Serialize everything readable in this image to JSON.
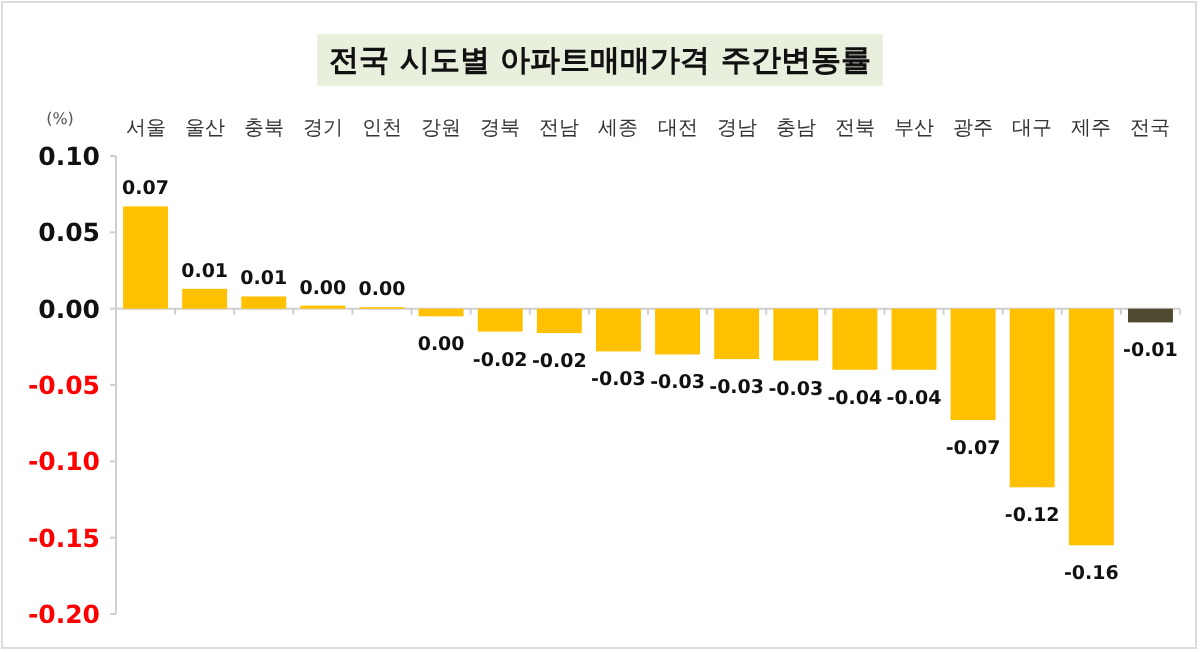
{
  "chart_data": {
    "type": "bar",
    "title": "전국 시도별 아파트매매가격 주간변동률",
    "ylabel": "(%)",
    "categories": [
      "서울",
      "울산",
      "충북",
      "경기",
      "인천",
      "강원",
      "경북",
      "전남",
      "세종",
      "대전",
      "경남",
      "충남",
      "전북",
      "부산",
      "광주",
      "대구",
      "제주",
      "전국"
    ],
    "values": [
      0.067,
      0.013,
      0.008,
      0.002,
      0.001,
      -0.005,
      -0.015,
      -0.016,
      -0.028,
      -0.03,
      -0.033,
      -0.034,
      -0.04,
      -0.04,
      -0.073,
      -0.117,
      -0.155,
      -0.009
    ],
    "value_labels": [
      "0.07",
      "0.01",
      "0.01",
      "0.00",
      "0.00",
      "0.00",
      "-0.02",
      "-0.02",
      "-0.03",
      "-0.03",
      "-0.03",
      "-0.03",
      "-0.04",
      "-0.04",
      "-0.07",
      "-0.12",
      "-0.16",
      "-0.01"
    ],
    "colors": [
      "#ffc000",
      "#ffc000",
      "#ffc000",
      "#ffc000",
      "#ffc000",
      "#ffc000",
      "#ffc000",
      "#ffc000",
      "#ffc000",
      "#ffc000",
      "#ffc000",
      "#ffc000",
      "#ffc000",
      "#ffc000",
      "#ffc000",
      "#ffc000",
      "#ffc000",
      "#4f4a30"
    ],
    "ylim": [
      -0.2,
      0.1
    ],
    "yticks": [
      {
        "value": 0.1,
        "label": "0.10"
      },
      {
        "value": 0.05,
        "label": "0.05"
      },
      {
        "value": 0,
        "label": "0.00"
      },
      {
        "value": -0.05,
        "label": "-0.05"
      },
      {
        "value": -0.1,
        "label": "-0.10"
      },
      {
        "value": -0.15,
        "label": "-0.15"
      },
      {
        "value": -0.2,
        "label": "-0.20"
      }
    ],
    "legend": false
  }
}
